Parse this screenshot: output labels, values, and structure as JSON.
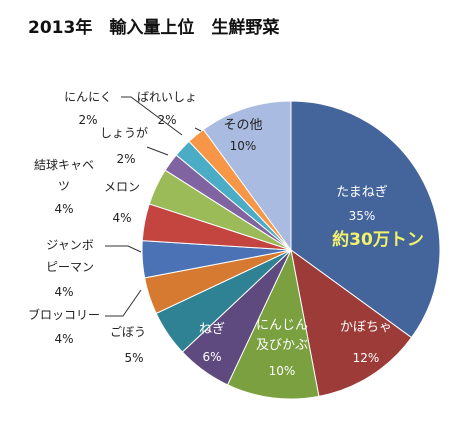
{
  "chart_data": {
    "type": "pie",
    "title": "2013年　輸入量上位　生鮮野菜",
    "annotation": "約30万トン",
    "start_angle_deg": 0,
    "direction": "clockwise",
    "slices": [
      {
        "label": "たまねぎ",
        "value": 35,
        "value_label": "35%",
        "color": "#44659c"
      },
      {
        "label": "かぼちゃ",
        "value": 12,
        "value_label": "12%",
        "color": "#9c3b37"
      },
      {
        "label": "にんじん及びかぶ",
        "value": 10,
        "value_label": "10%",
        "color": "#7aa03f"
      },
      {
        "label": "ねぎ",
        "value": 6,
        "value_label": "6%",
        "color": "#5f4a80"
      },
      {
        "label": "ごぼう",
        "value": 5,
        "value_label": "5%",
        "color": "#2e8294"
      },
      {
        "label": "ブロッコリー",
        "value": 4,
        "value_label": "4%",
        "color": "#d57a30"
      },
      {
        "label": "ジャンボピーマン",
        "value": 4,
        "value_label": "4%",
        "color": "#4a72b5"
      },
      {
        "label": "メロン",
        "value": 4,
        "value_label": "4%",
        "color": "#c4443f"
      },
      {
        "label": "結球キャベツ",
        "value": 4,
        "value_label": "4%",
        "color": "#9bbb59"
      },
      {
        "label": "しょうが",
        "value": 2,
        "value_label": "2%",
        "color": "#8064a2"
      },
      {
        "label": "にんにく",
        "value": 2,
        "value_label": "2%",
        "color": "#4bacc6"
      },
      {
        "label": "ばれいしょ",
        "value": 2,
        "value_label": "2%",
        "color": "#f79646"
      },
      {
        "label": "その他",
        "value": 10,
        "value_label": "10%",
        "color": "#a9bbe0"
      }
    ]
  }
}
